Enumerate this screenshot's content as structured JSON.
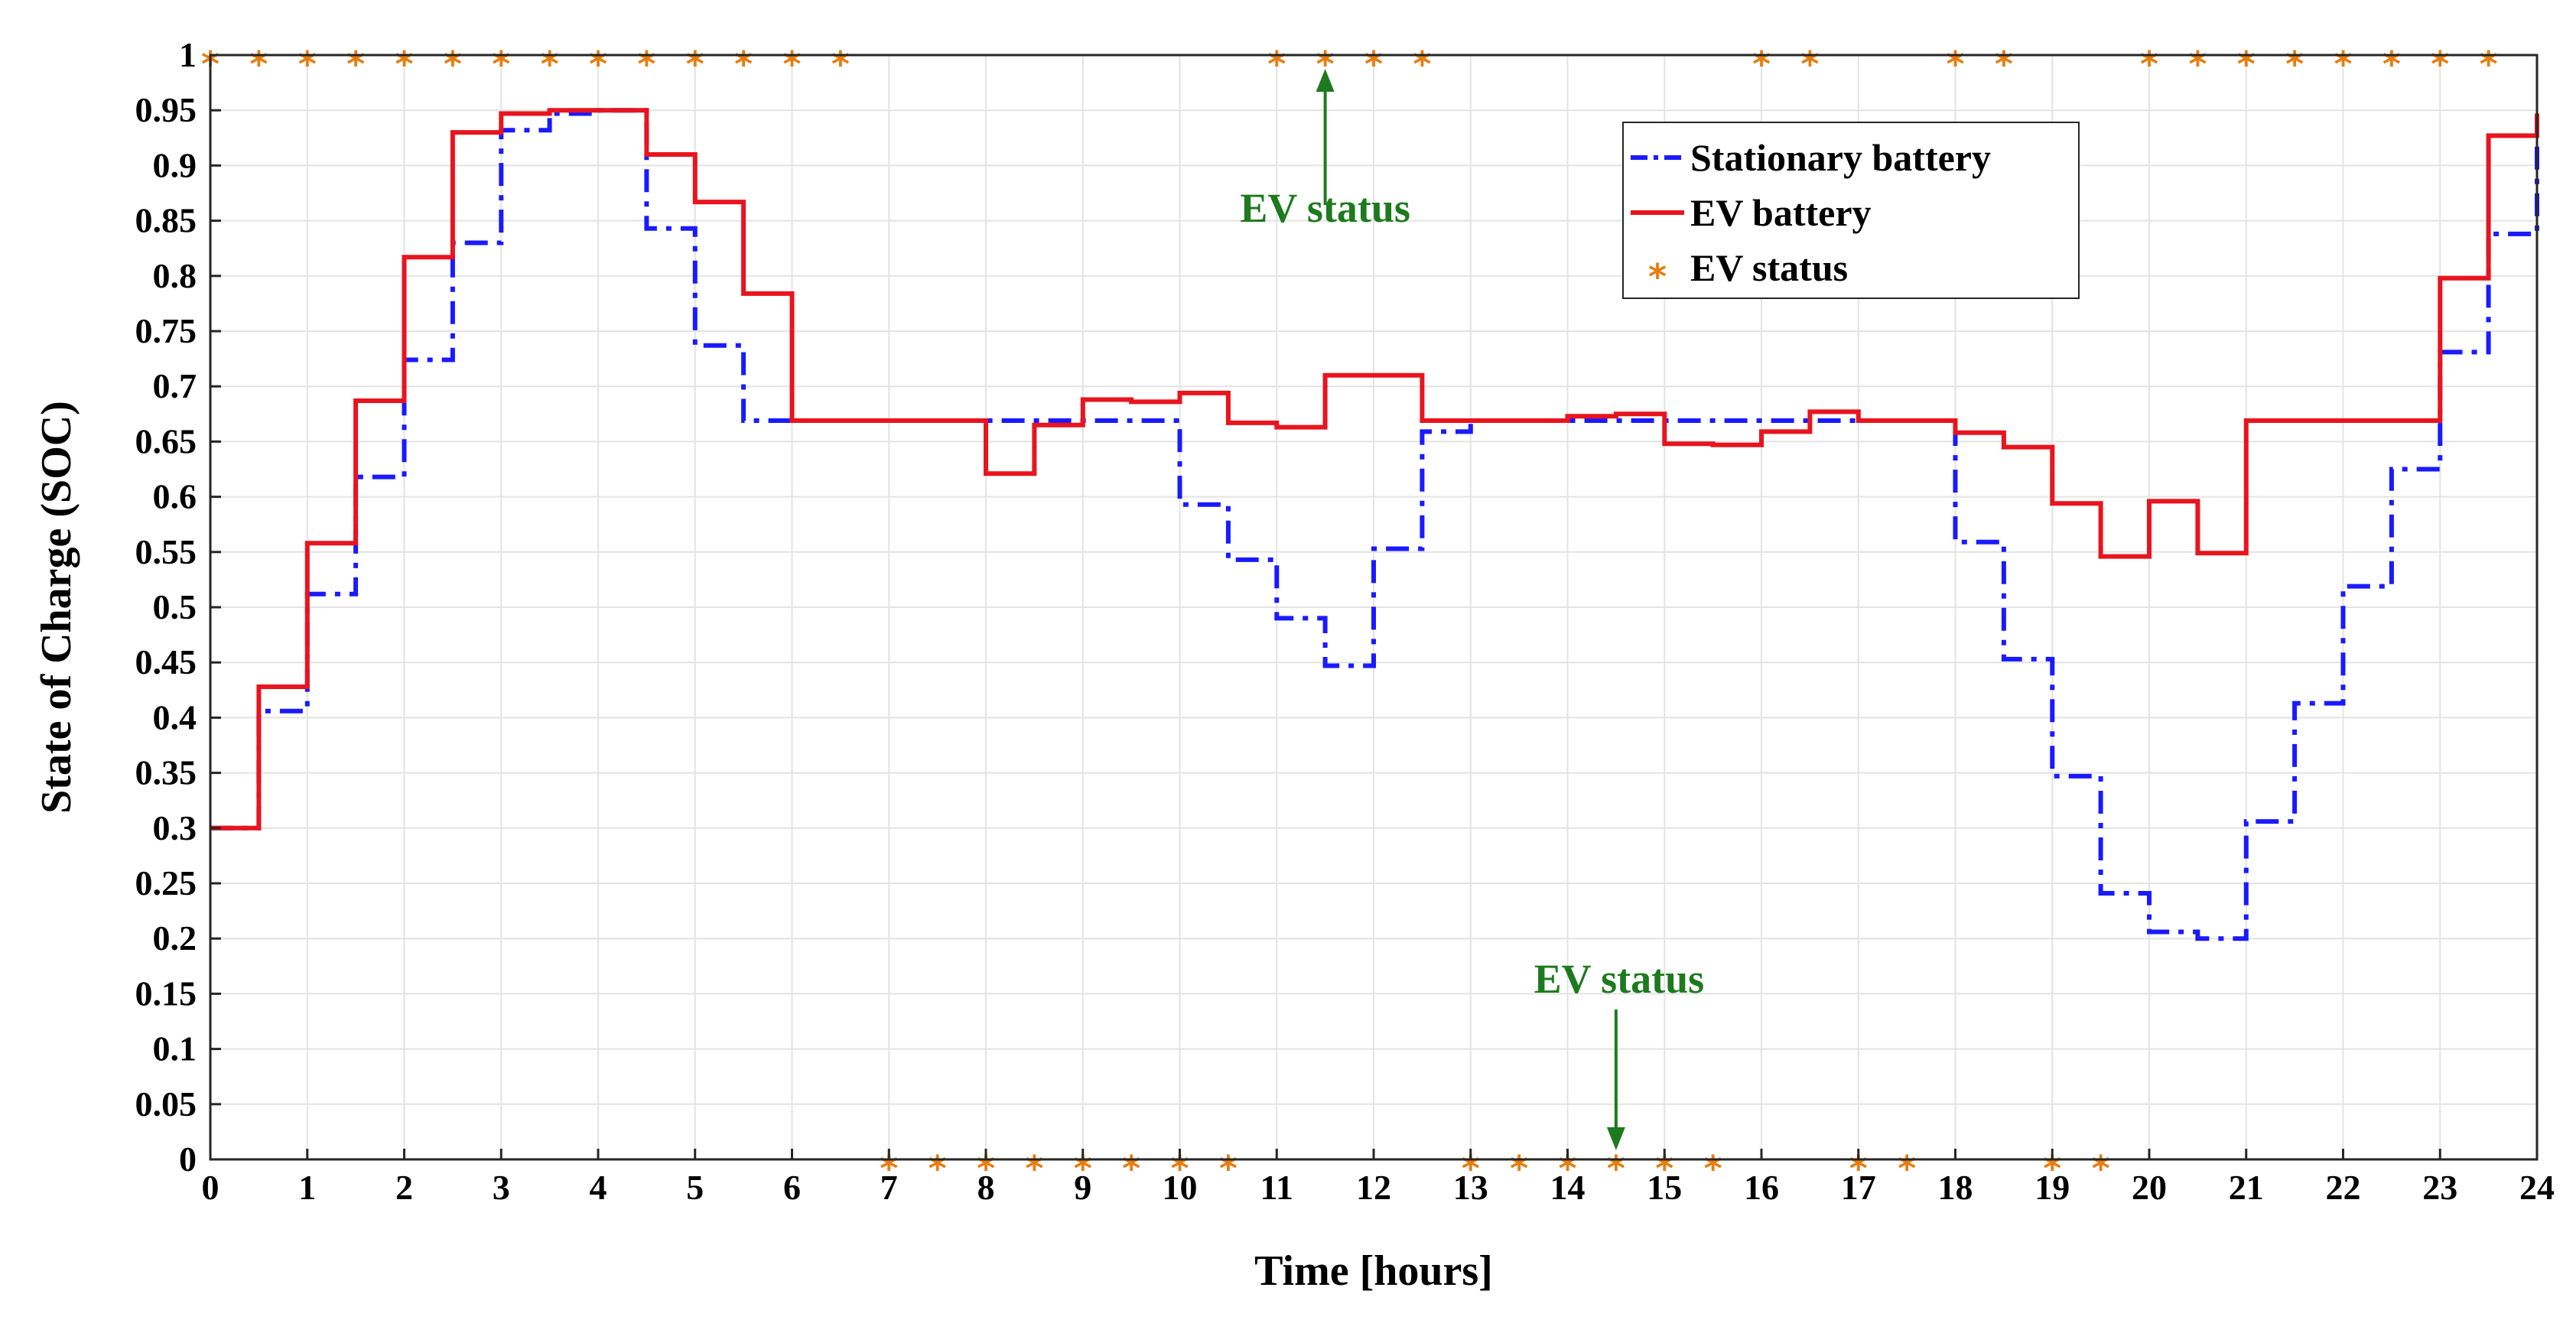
{
  "chart_data": {
    "type": "line",
    "title": "",
    "xlabel": "Time [hours]",
    "ylabel": "State of Charge (SOC)",
    "xlim": [
      0,
      24
    ],
    "ylim": [
      0,
      1
    ],
    "grid": true,
    "legend_position": "top-right",
    "xticks": [
      0,
      1,
      2,
      3,
      4,
      5,
      6,
      7,
      8,
      9,
      10,
      11,
      12,
      13,
      14,
      15,
      16,
      17,
      18,
      19,
      20,
      21,
      22,
      23,
      24
    ],
    "xtick_labels": [
      "0",
      "1",
      "2",
      "3",
      "4",
      "5",
      "6",
      "7",
      "8",
      "9",
      "10",
      "11",
      "12",
      "13",
      "14",
      "15",
      "16",
      "17",
      "18",
      "19",
      "20",
      "21",
      "22",
      "23",
      "24"
    ],
    "yticks": [
      0,
      0.05,
      0.1,
      0.15,
      0.2,
      0.25,
      0.3,
      0.35,
      0.4,
      0.45,
      0.5,
      0.55,
      0.6,
      0.65,
      0.7,
      0.75,
      0.8,
      0.85,
      0.9,
      0.95,
      1
    ],
    "ytick_labels": [
      "0",
      "0.05",
      "0.1",
      "0.15",
      "0.2",
      "0.25",
      "0.3",
      "0.35",
      "0.4",
      "0.45",
      "0.5",
      "0.55",
      "0.6",
      "0.65",
      "0.7",
      "0.75",
      "0.8",
      "0.85",
      "0.9",
      "0.95",
      "1"
    ],
    "step_width": 0.5,
    "series": [
      {
        "name": "Stationary battery",
        "style": "dash-dot",
        "color": "#1a1aff",
        "values": [
          0.3,
          0.406,
          0.512,
          0.618,
          0.724,
          0.83,
          0.932,
          0.947,
          0.95,
          0.843,
          0.737,
          0.669,
          0.669,
          0.669,
          0.669,
          0.669,
          0.669,
          0.669,
          0.669,
          0.669,
          0.593,
          0.543,
          0.49,
          0.447,
          0.553,
          0.659,
          0.669,
          0.669,
          0.669,
          0.669,
          0.669,
          0.669,
          0.669,
          0.669,
          0.669,
          0.669,
          0.559,
          0.453,
          0.347,
          0.241,
          0.206,
          0.2,
          0.306,
          0.413,
          0.519,
          0.625,
          0.731,
          0.838,
          0.932
        ]
      },
      {
        "name": "EV battery",
        "style": "solid",
        "color": "#e8141e",
        "values": [
          0.3,
          0.428,
          0.558,
          0.687,
          0.817,
          0.93,
          0.947,
          0.95,
          0.95,
          0.91,
          0.867,
          0.784,
          0.669,
          0.669,
          0.669,
          0.669,
          0.621,
          0.665,
          0.688,
          0.686,
          0.694,
          0.667,
          0.663,
          0.71,
          0.71,
          0.669,
          0.669,
          0.669,
          0.673,
          0.675,
          0.648,
          0.647,
          0.659,
          0.677,
          0.669,
          0.669,
          0.658,
          0.645,
          0.594,
          0.546,
          0.596,
          0.549,
          0.669,
          0.669,
          0.669,
          0.669,
          0.798,
          0.927,
          0.947
        ]
      }
    ],
    "ev_status": {
      "name": "EV status",
      "marker": "*",
      "color": "#e87d0f",
      "at_one_x": [
        0,
        0.5,
        1,
        1.5,
        2,
        2.5,
        3,
        3.5,
        4,
        4.5,
        5,
        5.5,
        6,
        6.5,
        11,
        11.5,
        12,
        12.5,
        16,
        16.5,
        18,
        18.5,
        20,
        20.5,
        21,
        21.5,
        22,
        22.5,
        23,
        23.5
      ],
      "at_zero_x": [
        7,
        7.5,
        8,
        8.5,
        9,
        9.5,
        10,
        10.5,
        13,
        13.5,
        14,
        14.5,
        15,
        15.5,
        17,
        17.5,
        19,
        19.5
      ]
    },
    "annotations": [
      {
        "text": "EV status",
        "x": 11.5,
        "y": 1,
        "direction": "up",
        "color": "#1e7a1e"
      },
      {
        "text": "EV status",
        "x": 14.5,
        "y": 0,
        "direction": "down",
        "color": "#1e7a1e"
      }
    ]
  }
}
